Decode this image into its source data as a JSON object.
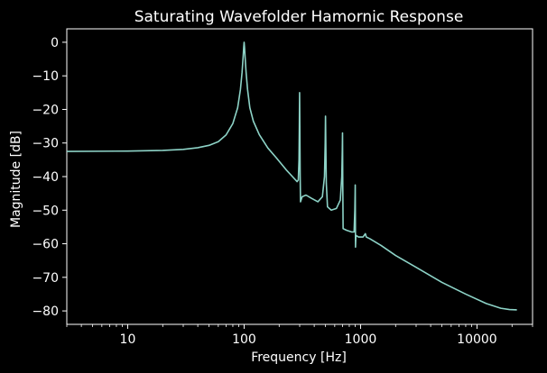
{
  "chart_data": {
    "type": "line",
    "title": "Saturating Wavefolder Hamornic Response",
    "xlabel": "Frequency [Hz]",
    "ylabel": "Magnitude [dB]",
    "xscale": "log",
    "xlim": [
      3,
      30000
    ],
    "ylim": [
      -84,
      4
    ],
    "x_ticks": [
      10,
      100,
      1000,
      10000
    ],
    "x_tick_labels": [
      "10",
      "100",
      "1000",
      "10000"
    ],
    "y_ticks": [
      0,
      -10,
      -20,
      -30,
      -40,
      -50,
      -60,
      -70,
      -80
    ],
    "y_tick_labels": [
      "0",
      "−10",
      "−20",
      "−30",
      "−40",
      "−50",
      "−60",
      "−70",
      "−80"
    ],
    "grid": false,
    "series": [
      {
        "color": "#8dd3c7",
        "points": [
          [
            3,
            -32.5
          ],
          [
            10,
            -32.4
          ],
          [
            20,
            -32.2
          ],
          [
            30,
            -31.9
          ],
          [
            40,
            -31.4
          ],
          [
            50,
            -30.7
          ],
          [
            60,
            -29.6
          ],
          [
            70,
            -27.6
          ],
          [
            80,
            -24.2
          ],
          [
            88,
            -19.5
          ],
          [
            93,
            -14.0
          ],
          [
            96,
            -9.0
          ],
          [
            98,
            -4.5
          ],
          [
            99.2,
            -1.5
          ],
          [
            100,
            0
          ],
          [
            100.8,
            -1.5
          ],
          [
            102,
            -4.5
          ],
          [
            104,
            -9.0
          ],
          [
            107,
            -14.0
          ],
          [
            112,
            -19.5
          ],
          [
            120,
            -23.5
          ],
          [
            135,
            -27.5
          ],
          [
            160,
            -31.5
          ],
          [
            190,
            -34.5
          ],
          [
            230,
            -38.0
          ],
          [
            260,
            -40.0
          ],
          [
            285,
            -41.5
          ],
          [
            292,
            -41.0
          ],
          [
            296,
            -35.0
          ],
          [
            298,
            -25.0
          ],
          [
            299.5,
            -15.0
          ],
          [
            301,
            -25.0
          ],
          [
            303,
            -40.0
          ],
          [
            305,
            -47.5
          ],
          [
            315,
            -46.0
          ],
          [
            340,
            -45.5
          ],
          [
            380,
            -46.5
          ],
          [
            430,
            -47.5
          ],
          [
            470,
            -46.0
          ],
          [
            490,
            -40.0
          ],
          [
            497,
            -30.0
          ],
          [
            500,
            -22.0
          ],
          [
            503,
            -30.0
          ],
          [
            508,
            -42.0
          ],
          [
            520,
            -49.0
          ],
          [
            560,
            -50.0
          ],
          [
            620,
            -49.5
          ],
          [
            670,
            -47.0
          ],
          [
            690,
            -40.0
          ],
          [
            697,
            -32.0
          ],
          [
            700,
            -27.0
          ],
          [
            703,
            -40.0
          ],
          [
            708,
            -55.5
          ],
          [
            760,
            -56.0
          ],
          [
            840,
            -56.5
          ],
          [
            880,
            -56.5
          ],
          [
            893,
            -50.0
          ],
          [
            898,
            -45.0
          ],
          [
            900,
            -42.5
          ],
          [
            902,
            -50.0
          ],
          [
            905,
            -61.0
          ],
          [
            912,
            -57.5
          ],
          [
            960,
            -58.0
          ],
          [
            1050,
            -58.0
          ],
          [
            1100,
            -57.0
          ],
          [
            1120,
            -58.0
          ],
          [
            1200,
            -58.5
          ],
          [
            1500,
            -60.5
          ],
          [
            2000,
            -63.5
          ],
          [
            3000,
            -67.0
          ],
          [
            5000,
            -71.5
          ],
          [
            8000,
            -75.0
          ],
          [
            12000,
            -77.8
          ],
          [
            16000,
            -79.2
          ],
          [
            19000,
            -79.6
          ],
          [
            22000,
            -79.7
          ]
        ]
      }
    ]
  }
}
